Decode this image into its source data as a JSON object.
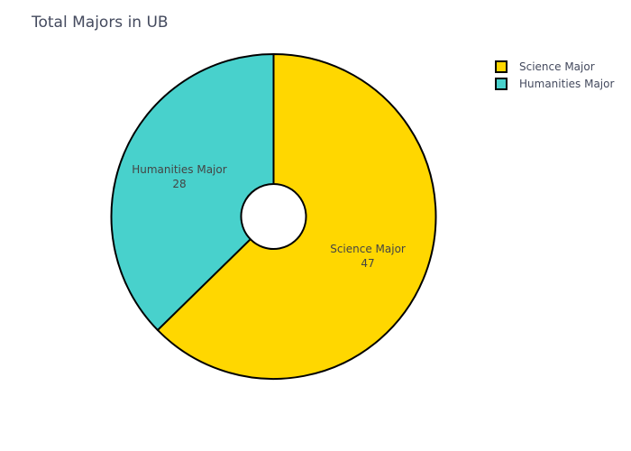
{
  "chart_data": {
    "type": "pie",
    "title": "Total Majors in UB",
    "hole": 0.2,
    "slices": [
      {
        "label": "Science Major",
        "value": 47,
        "color": "#FFD700"
      },
      {
        "label": "Humanities Major",
        "value": 28,
        "color": "#48D1CC"
      }
    ],
    "legend": {
      "position": "top-right",
      "items": [
        "Science Major",
        "Humanities Major"
      ]
    },
    "show_text": [
      "label",
      "value"
    ],
    "outline_color": "#000000"
  }
}
